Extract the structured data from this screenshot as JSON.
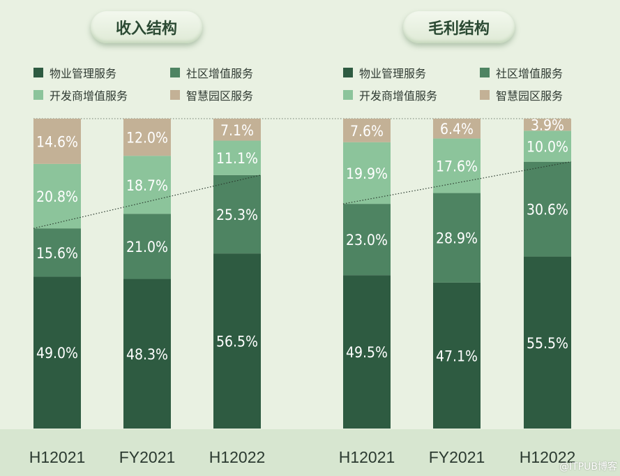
{
  "colors": {
    "property_management": "#2e5b41",
    "community_vas": "#4e8462",
    "developer_vas": "#8cc49b",
    "smart_park": "#c3b196"
  },
  "legend": [
    {
      "key": "property_management",
      "label": "物业管理服务"
    },
    {
      "key": "community_vas",
      "label": "社区增值服务"
    },
    {
      "key": "developer_vas",
      "label": "开发商增值服务"
    },
    {
      "key": "smart_park",
      "label": "智慧园区服务"
    }
  ],
  "watermark": "@ITPUB博客",
  "chart_data": [
    {
      "type": "bar",
      "stacked": true,
      "title": "收入结构",
      "categories": [
        "H12021",
        "FY2021",
        "H12022"
      ],
      "series": [
        {
          "key": "property_management",
          "name": "物业管理服务",
          "values": [
            49.0,
            48.3,
            56.5
          ],
          "labels": [
            "49.0%",
            "48.3%",
            "56.5%"
          ]
        },
        {
          "key": "community_vas",
          "name": "社区增值服务",
          "values": [
            15.6,
            21.0,
            25.3
          ],
          "labels": [
            "15.6%",
            "21.0%",
            "25.3%"
          ]
        },
        {
          "key": "developer_vas",
          "name": "开发商增值服务",
          "values": [
            20.8,
            18.7,
            11.1
          ],
          "labels": [
            "20.8%",
            "18.7%",
            "11.1%"
          ]
        },
        {
          "key": "smart_park",
          "name": "智慧园区服务",
          "values": [
            14.6,
            12.0,
            7.1
          ],
          "labels": [
            "14.6%",
            "12.0%",
            "7.1%"
          ]
        }
      ],
      "ylim": [
        0,
        100
      ],
      "grid": false,
      "legend_position": "top"
    },
    {
      "type": "bar",
      "stacked": true,
      "title": "毛利结构",
      "categories": [
        "H12021",
        "FY2021",
        "H12022"
      ],
      "series": [
        {
          "key": "property_management",
          "name": "物业管理服务",
          "values": [
            49.5,
            47.1,
            55.5
          ],
          "labels": [
            "49.5%",
            "47.1%",
            "55.5%"
          ]
        },
        {
          "key": "community_vas",
          "name": "社区增值服务",
          "values": [
            23.0,
            28.9,
            30.6
          ],
          "labels": [
            "23.0%",
            "28.9%",
            "30.6%"
          ]
        },
        {
          "key": "developer_vas",
          "name": "开发商增值服务",
          "values": [
            19.9,
            17.6,
            10.0
          ],
          "labels": [
            "19.9%",
            "17.6%",
            "10.0%"
          ]
        },
        {
          "key": "smart_park",
          "name": "智慧园区服务",
          "values": [
            7.6,
            6.4,
            3.9
          ],
          "labels": [
            "7.6%",
            "6.4%",
            "3.9%"
          ]
        }
      ],
      "ylim": [
        0,
        100
      ],
      "grid": false,
      "legend_position": "top"
    }
  ]
}
